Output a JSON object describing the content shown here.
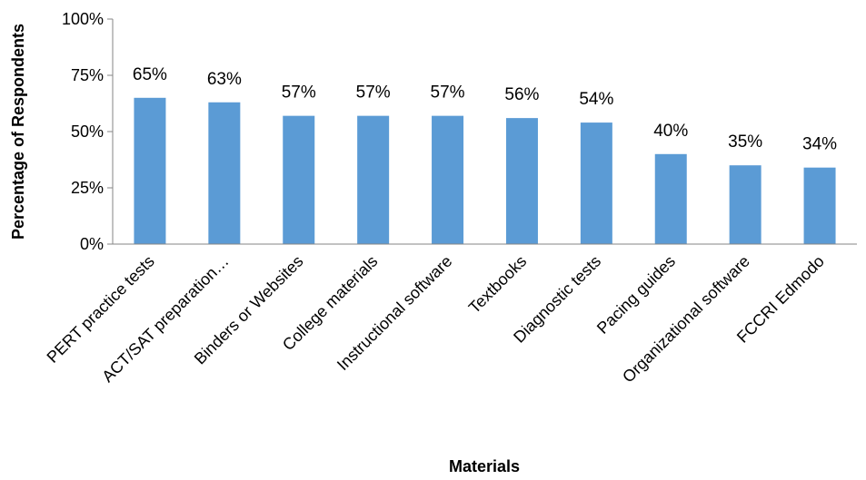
{
  "chart_data": {
    "type": "bar",
    "title": "",
    "xlabel": "Materials",
    "ylabel": "Percentage of Respondents",
    "ylim": [
      0,
      100
    ],
    "yticks": [
      0,
      25,
      50,
      75,
      100
    ],
    "ytick_labels": [
      "0%",
      "25%",
      "50%",
      "75%",
      "100%"
    ],
    "categories": [
      "PERT practice tests",
      "ACT/SAT preparation…",
      "Binders or Websites",
      "College materials",
      "Instructional software",
      "Textbooks",
      "Diagnostic tests",
      "Pacing guides",
      "Organizational software",
      "FCCRI Edmodo"
    ],
    "values": [
      65,
      63,
      57,
      57,
      57,
      56,
      54,
      40,
      35,
      34
    ],
    "data_labels": [
      "65%",
      "63%",
      "57%",
      "57%",
      "57%",
      "56%",
      "54%",
      "40%",
      "35%",
      "34%"
    ],
    "grid": false,
    "legend": "none",
    "bar_color": "#5b9bd5"
  }
}
